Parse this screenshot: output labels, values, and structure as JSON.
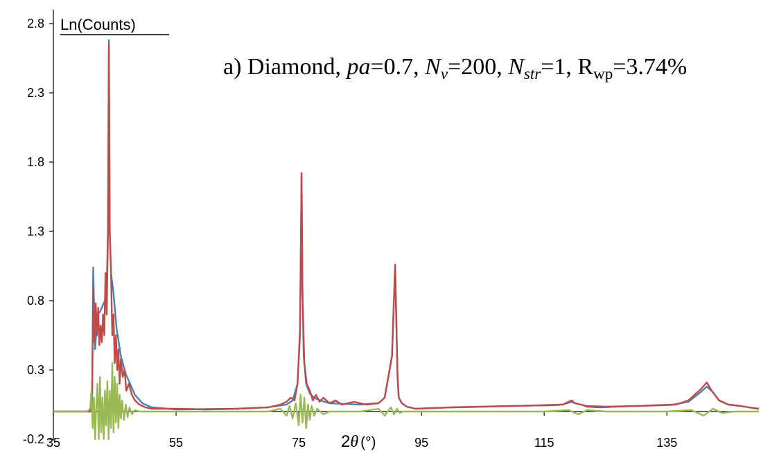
{
  "chart_data": {
    "type": "line",
    "ylabel": "Ln(Counts)",
    "xlabel": {
      "prefix": "2",
      "theta": "θ",
      "unit": "(°)"
    },
    "annotation": {
      "prefix": "a) Diamond, ",
      "pa": "pa",
      "pa_val": "=0.7, ",
      "nv_main": "N",
      "nv_sub": "v",
      "nv_val": "=200, ",
      "nstr_main": "N",
      "nstr_sub": "str",
      "nstr_val": "=1, ",
      "rwp_main": "R",
      "rwp_sub": "wp",
      "rwp_val": "=3.74%"
    },
    "xlim": [
      35,
      150
    ],
    "ylim": [
      -0.2,
      2.9
    ],
    "x_ticks": [
      35,
      55,
      75,
      95,
      115,
      135
    ],
    "x_tick_labels": [
      "35",
      "55",
      "75",
      "95",
      "115",
      "135"
    ],
    "y_ticks": [
      -0.2,
      0.3,
      0.8,
      1.3,
      1.8,
      2.3,
      2.8
    ],
    "y_tick_labels": [
      "-0.2",
      "0.3",
      "0.8",
      "1.3",
      "1.8",
      "2.3",
      "2.8"
    ],
    "x_axis_at_y": 0.0,
    "grid": false,
    "legend": "none",
    "series": [
      {
        "color": "#4a7ebb",
        "x": [
          35,
          41.0,
          41.3,
          41.5,
          41.8,
          42.2,
          42.6,
          43.0,
          43.4,
          43.7,
          43.9,
          44.05,
          44.2,
          44.4,
          44.8,
          45.3,
          46.0,
          46.8,
          47.5,
          48.3,
          49.5,
          51,
          55,
          65,
          70,
          73,
          74,
          74.8,
          75.2,
          75.45,
          75.6,
          75.8,
          76.2,
          76.8,
          77.5,
          78.5,
          80,
          85,
          88,
          89,
          90.2,
          90.7,
          90.95,
          91.1,
          91.3,
          91.8,
          92.6,
          94,
          100,
          110,
          118,
          119.5,
          120,
          121,
          122,
          125,
          130,
          136,
          138.5,
          140.5,
          141.5,
          142.5,
          143.5,
          145,
          147,
          149,
          150
        ],
        "y": [
          0,
          0.0,
          0.05,
          1.04,
          0.45,
          0.7,
          0.72,
          0.76,
          0.8,
          0.9,
          1.3,
          2.68,
          1.3,
          1.0,
          0.85,
          0.6,
          0.4,
          0.27,
          0.2,
          0.12,
          0.06,
          0.03,
          0.015,
          0.02,
          0.03,
          0.05,
          0.08,
          0.2,
          0.55,
          1.72,
          0.9,
          0.4,
          0.2,
          0.13,
          0.1,
          0.08,
          0.06,
          0.05,
          0.06,
          0.1,
          0.4,
          1.06,
          0.55,
          0.25,
          0.1,
          0.06,
          0.035,
          0.02,
          0.03,
          0.04,
          0.05,
          0.07,
          0.06,
          0.05,
          0.04,
          0.035,
          0.04,
          0.05,
          0.07,
          0.14,
          0.18,
          0.14,
          0.08,
          0.05,
          0.04,
          0.025,
          0.02
        ]
      },
      {
        "color": "#be4b48",
        "x": [
          35,
          41.0,
          41.3,
          41.5,
          41.7,
          41.9,
          42.1,
          42.3,
          42.5,
          42.7,
          42.9,
          43.1,
          43.3,
          43.5,
          43.7,
          43.9,
          44.05,
          44.2,
          44.4,
          44.6,
          44.8,
          45.0,
          45.2,
          45.4,
          45.6,
          45.8,
          46.0,
          46.3,
          46.6,
          46.9,
          47.3,
          47.8,
          48.3,
          49.0,
          50,
          51,
          55,
          60,
          65,
          70,
          72,
          73,
          73.7,
          74.3,
          74.8,
          75.2,
          75.45,
          75.6,
          75.9,
          76.3,
          76.8,
          77.3,
          77.8,
          78.4,
          79,
          80,
          81,
          82,
          84,
          86,
          88,
          89,
          90.2,
          90.7,
          90.95,
          91.1,
          91.3,
          91.8,
          92.6,
          94,
          100,
          110,
          116,
          118,
          119.5,
          120,
          121,
          122,
          124,
          127,
          130,
          134,
          136.5,
          138.5,
          140.5,
          141.5,
          142.3,
          143.5,
          145,
          147,
          149,
          150
        ],
        "y": [
          0,
          0.0,
          0.05,
          0.88,
          0.5,
          0.78,
          0.55,
          0.75,
          0.48,
          0.62,
          0.5,
          0.7,
          0.55,
          1.0,
          0.7,
          1.3,
          2.65,
          1.3,
          1.0,
          0.55,
          0.7,
          0.35,
          0.55,
          0.3,
          0.45,
          0.2,
          0.38,
          0.25,
          0.3,
          0.15,
          0.2,
          0.12,
          0.08,
          0.05,
          0.03,
          0.02,
          0.02,
          0.015,
          0.02,
          0.03,
          0.05,
          0.07,
          0.1,
          0.08,
          0.2,
          0.6,
          1.72,
          0.85,
          0.35,
          0.2,
          0.15,
          0.08,
          0.12,
          0.07,
          0.1,
          0.06,
          0.08,
          0.05,
          0.07,
          0.05,
          0.06,
          0.1,
          0.4,
          1.06,
          0.55,
          0.25,
          0.1,
          0.06,
          0.035,
          0.02,
          0.03,
          0.04,
          0.045,
          0.05,
          0.08,
          0.06,
          0.05,
          0.035,
          0.03,
          0.035,
          0.04,
          0.045,
          0.05,
          0.08,
          0.16,
          0.21,
          0.15,
          0.08,
          0.05,
          0.04,
          0.025,
          0.02
        ]
      },
      {
        "color": "#98b954",
        "x": [
          35,
          40.5,
          41.0,
          41.2,
          41.4,
          41.6,
          41.8,
          42.0,
          42.2,
          42.4,
          42.6,
          42.8,
          43.0,
          43.2,
          43.4,
          43.6,
          43.8,
          44.0,
          44.2,
          44.4,
          44.6,
          44.8,
          45.0,
          45.2,
          45.4,
          45.6,
          45.8,
          46.0,
          46.2,
          46.5,
          46.8,
          47.1,
          47.4,
          47.8,
          48.3,
          49,
          50,
          55,
          65,
          70,
          72,
          73,
          73.5,
          74,
          74.5,
          75,
          75.3,
          75.6,
          75.9,
          76.2,
          76.5,
          76.8,
          77.1,
          77.5,
          78,
          79,
          80,
          85,
          88,
          89,
          90,
          90.5,
          91,
          91.5,
          92,
          95,
          115,
          119,
          120.5,
          122,
          125,
          135,
          139,
          141,
          142.5,
          144,
          146,
          150
        ],
        "y": [
          0,
          0.0,
          0.02,
          0.15,
          -0.12,
          0.1,
          -0.2,
          0.05,
          0.2,
          -0.2,
          0.25,
          -0.15,
          0.1,
          -0.2,
          0.15,
          -0.1,
          0.22,
          -0.2,
          0.15,
          -0.12,
          0.35,
          -0.15,
          0.25,
          -0.08,
          0.2,
          -0.12,
          0.12,
          -0.05,
          0.08,
          -0.06,
          0.05,
          -0.04,
          0.03,
          -0.02,
          0.01,
          0.0,
          0.0,
          0.0,
          0.0,
          0.0,
          0.02,
          -0.03,
          0.04,
          -0.05,
          0.06,
          -0.1,
          0.12,
          -0.08,
          0.1,
          -0.12,
          0.05,
          -0.06,
          0.04,
          -0.03,
          0.02,
          -0.02,
          0.0,
          0.0,
          0.02,
          -0.03,
          0.03,
          -0.02,
          0.02,
          -0.01,
          0.0,
          0.0,
          0.0,
          0.01,
          -0.02,
          0.01,
          0.0,
          0.0,
          0.01,
          -0.03,
          0.02,
          -0.01,
          0.0,
          0.0
        ]
      }
    ]
  }
}
